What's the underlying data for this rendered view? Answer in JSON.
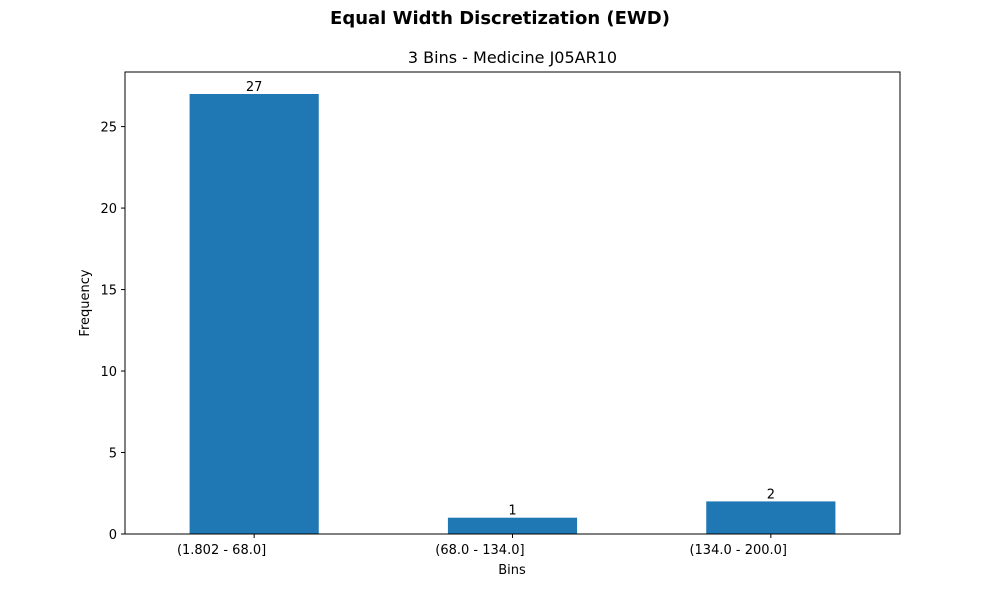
{
  "figure": {
    "suptitle": "Equal Width Discretization (EWD)"
  },
  "chart_data": {
    "type": "bar",
    "title": "3 Bins - Medicine J05AR10",
    "xlabel": "Bins",
    "ylabel": "Frequency",
    "categories": [
      "(1.802 - 68.0]",
      "(68.0 - 134.0]",
      "(134.0 - 200.0]"
    ],
    "values": [
      27,
      1,
      2
    ],
    "data_labels": [
      "27",
      "1",
      "2"
    ],
    "ylim": [
      0,
      28.35
    ],
    "yticks": [
      0,
      5,
      10,
      15,
      20,
      25
    ],
    "grid": false,
    "legend": "none",
    "bar_color": "#1f77b4"
  }
}
